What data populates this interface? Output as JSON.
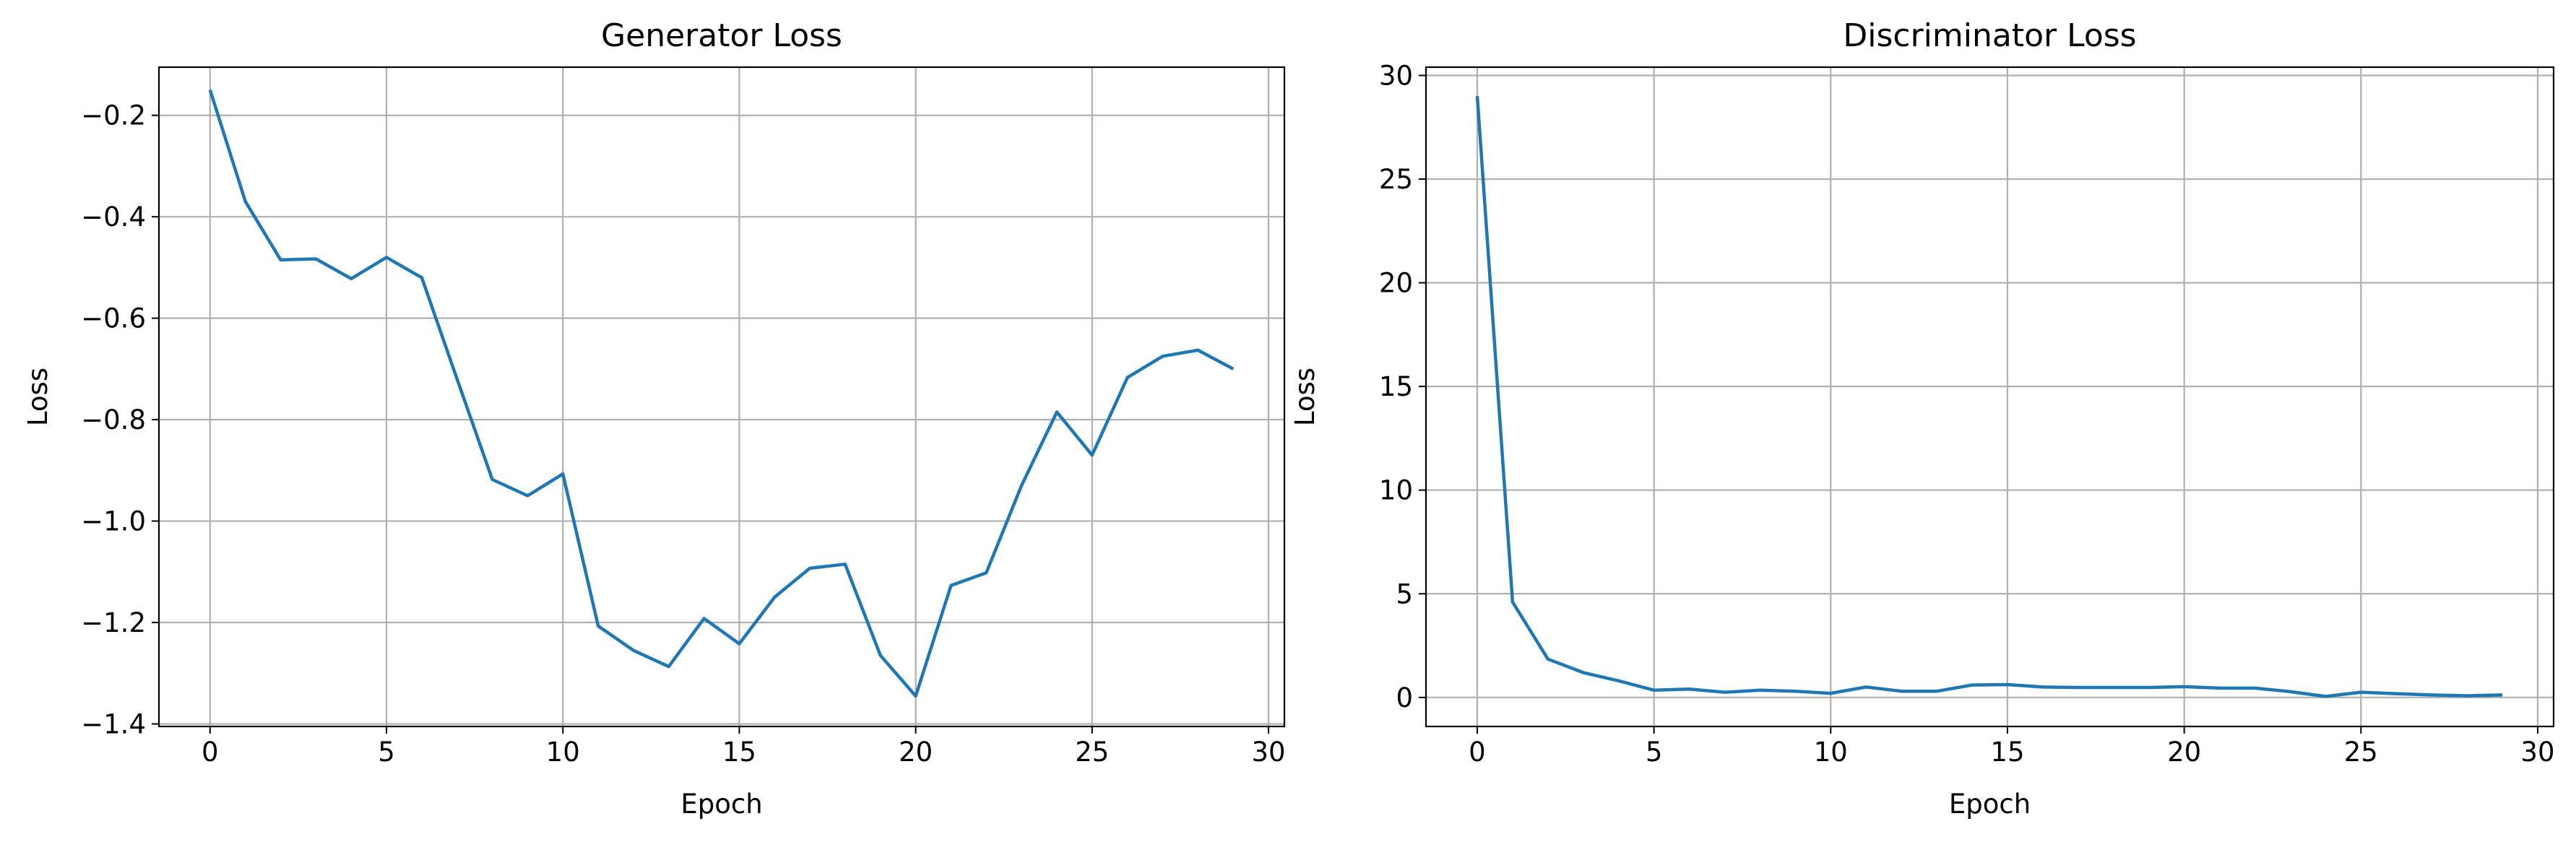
{
  "chart_data": [
    {
      "type": "line",
      "title": "Generator Loss",
      "xlabel": "Epoch",
      "ylabel": "Loss",
      "xlim": [
        -1.45,
        30.45
      ],
      "ylim": [
        -1.405,
        -0.105
      ],
      "xticks": [
        0,
        5,
        10,
        15,
        20,
        25,
        30
      ],
      "yticks": [
        -0.2,
        -0.4,
        -0.6,
        -0.8,
        -1.0,
        -1.2,
        -1.4
      ],
      "ytick_labels": [
        "−0.2",
        "−0.4",
        "−0.6",
        "−0.8",
        "−1.0",
        "−1.2",
        "−1.4"
      ],
      "grid": true,
      "series": [
        {
          "color": "#1f77b4",
          "x": [
            0,
            1,
            2,
            3,
            4,
            5,
            6,
            7,
            8,
            9,
            10,
            11,
            12,
            13,
            14,
            15,
            16,
            17,
            18,
            19,
            20,
            21,
            22,
            23,
            24,
            25,
            26,
            27,
            28,
            29
          ],
          "y": [
            -0.15,
            -0.37,
            -0.485,
            -0.483,
            -0.522,
            -0.48,
            -0.52,
            -0.72,
            -0.918,
            -0.95,
            -0.907,
            -1.207,
            -1.255,
            -1.287,
            -1.192,
            -1.242,
            -1.15,
            -1.093,
            -1.085,
            -1.265,
            -1.345,
            -1.127,
            -1.102,
            -0.93,
            -0.785,
            -0.87,
            -0.717,
            -0.675,
            -0.663,
            -0.7
          ]
        }
      ]
    },
    {
      "type": "line",
      "title": "Discriminator Loss",
      "xlabel": "Epoch",
      "ylabel": "Loss",
      "xlim": [
        -1.45,
        30.45
      ],
      "ylim": [
        -1.4,
        30.4
      ],
      "xticks": [
        0,
        5,
        10,
        15,
        20,
        25,
        30
      ],
      "yticks": [
        0,
        5,
        10,
        15,
        20,
        25,
        30
      ],
      "ytick_labels": [
        "0",
        "5",
        "10",
        "15",
        "20",
        "25",
        "30"
      ],
      "grid": true,
      "series": [
        {
          "color": "#1f77b4",
          "x": [
            0,
            1,
            2,
            3,
            4,
            5,
            6,
            7,
            8,
            9,
            10,
            11,
            12,
            13,
            14,
            15,
            16,
            17,
            18,
            19,
            20,
            21,
            22,
            23,
            24,
            25,
            26,
            27,
            28,
            29
          ],
          "y": [
            29.0,
            4.6,
            1.85,
            1.2,
            0.8,
            0.35,
            0.4,
            0.25,
            0.35,
            0.3,
            0.2,
            0.5,
            0.3,
            0.3,
            0.6,
            0.62,
            0.5,
            0.48,
            0.48,
            0.48,
            0.52,
            0.45,
            0.45,
            0.28,
            0.05,
            0.25,
            0.18,
            0.12,
            0.08,
            0.12
          ]
        }
      ]
    }
  ]
}
